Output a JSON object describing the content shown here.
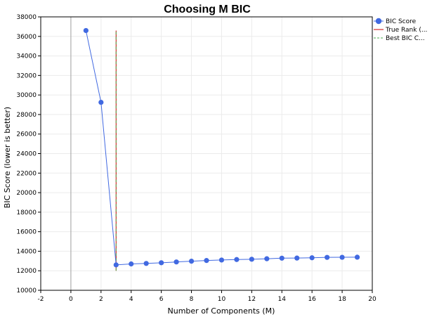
{
  "chart_data": {
    "type": "line",
    "title": "Choosing M BIC",
    "xlabel": "Number of Components (M)",
    "ylabel": "BIC Score  (lower is better)",
    "xlim": [
      -2,
      20
    ],
    "ylim": [
      10000,
      38000
    ],
    "xticks": [
      -2,
      0,
      2,
      4,
      6,
      8,
      10,
      12,
      14,
      16,
      18,
      20
    ],
    "yticks": [
      10000,
      12000,
      14000,
      16000,
      18000,
      20000,
      22000,
      24000,
      26000,
      28000,
      30000,
      32000,
      34000,
      36000,
      38000
    ],
    "grid": true,
    "legend_position": "top-right outside",
    "series": [
      {
        "name": "BIC Score",
        "kind": "line-markers",
        "color": "#4169E1",
        "x": [
          1,
          2,
          3,
          4,
          5,
          6,
          7,
          8,
          9,
          10,
          11,
          12,
          13,
          14,
          15,
          16,
          17,
          18,
          19
        ],
        "y": [
          36600,
          29250,
          12600,
          12700,
          12750,
          12820,
          12900,
          12980,
          13050,
          13100,
          13150,
          13180,
          13230,
          13290,
          13300,
          13330,
          13370,
          13380,
          13390
        ]
      },
      {
        "name": "True Rank (...",
        "kind": "vline",
        "style": "solid",
        "color": "#CC0000",
        "x": 3,
        "y_range": [
          12000,
          36600
        ]
      },
      {
        "name": "Best BIC C...",
        "kind": "vline",
        "style": "dashed",
        "color": "#4CAF50",
        "x": 3,
        "y_range": [
          12000,
          36600
        ]
      }
    ]
  }
}
